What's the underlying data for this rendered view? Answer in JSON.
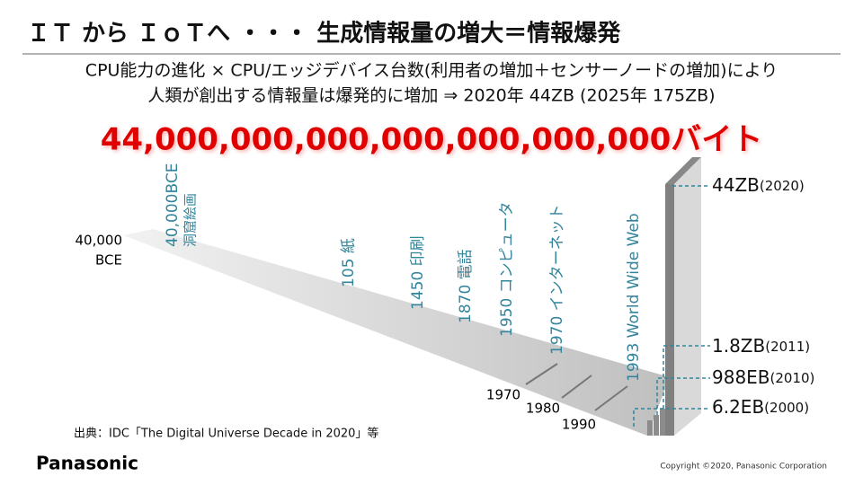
{
  "header": {
    "title": "ＩＴ から ＩｏＴへ ・・・ 生成情報量の増大＝情報爆発"
  },
  "subtitle": {
    "lines": [
      "CPU能力の進化 × CPU/エッジデバイス台数(利用者の増加＋センサーノードの増加)により",
      "人類が創出する情報量は爆発的に増加 ⇒ 2020年 44ZB (2025年 175ZB)"
    ]
  },
  "headline": "44,000,000,000,000,000,000,000バイト",
  "timeline": {
    "start": [
      "40,000",
      "BCE"
    ],
    "milestones": [
      {
        "year": "40,000BCE",
        "label": "洞窟絵画"
      },
      {
        "year": "105",
        "label": "紙"
      },
      {
        "year": "1450",
        "label": "印刷"
      },
      {
        "year": "1870",
        "label": "電話"
      },
      {
        "year": "1950",
        "label": "コンピュータ"
      },
      {
        "year": "1970",
        "label": "インターネット"
      },
      {
        "year": "1993",
        "label": "World Wide Web"
      }
    ],
    "decades": [
      "1970",
      "1980",
      "1990"
    ],
    "volumes": [
      {
        "amount": "44ZB",
        "year": "(2020)"
      },
      {
        "amount": "1.8ZB",
        "year": "(2011)"
      },
      {
        "amount": "988EB",
        "year": "(2010)"
      },
      {
        "amount": "6.2EB",
        "year": "(2000)"
      }
    ]
  },
  "source": "出典：IDC「The Digital Universe Decade in 2020」等",
  "footer": {
    "brand": "Panasonic",
    "copyright": "Copyright ©2020, Panasonic Corporation"
  }
}
